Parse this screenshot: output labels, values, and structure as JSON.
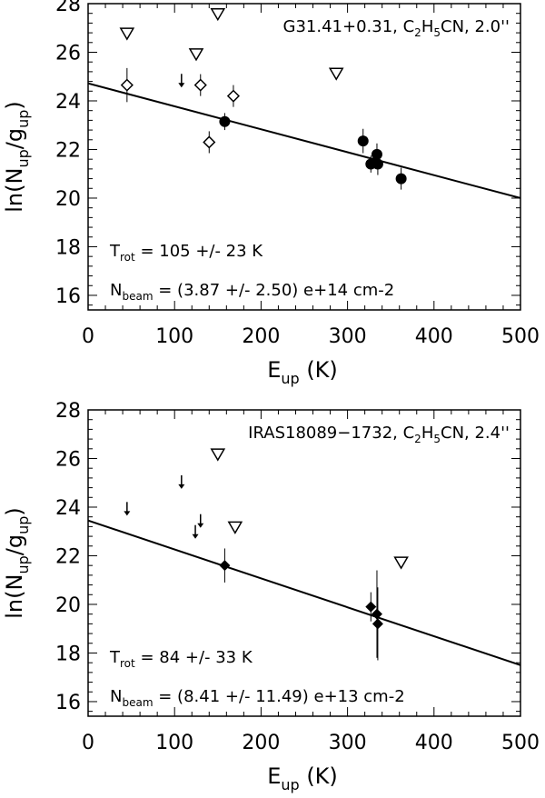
{
  "chart_data": [
    {
      "type": "scatter",
      "annotation": {
        "prefix": "G31.41+0.31, C",
        "sub1": "2",
        "mid": "H",
        "sub2": "5",
        "suffix": "CN, 2.0''"
      },
      "xlabel": {
        "main": "E",
        "sub": "up",
        "unit": " (K)"
      },
      "ylabel": {
        "pre": "ln(N",
        "sub1": "up",
        "mid": "/g",
        "sub2": "up",
        "post": ")"
      },
      "xlim": [
        0,
        500
      ],
      "ylim": [
        15.4,
        28
      ],
      "xticks": [
        0,
        100,
        200,
        300,
        400,
        500
      ],
      "yticks": [
        16,
        18,
        20,
        22,
        24,
        26,
        28
      ],
      "trot": {
        "label": "T",
        "sub": "rot",
        "text": " = 105 +/- 23 K"
      },
      "nbeam": {
        "label": "N",
        "sub": "beam",
        "text": " = (3.87 +/- 2.50) e+14 cm-2"
      },
      "fit": {
        "x": [
          0,
          500
        ],
        "y": [
          24.72,
          20.0
        ]
      },
      "filled_circles": [
        {
          "x": 158,
          "y": 23.15,
          "err": 0.35
        },
        {
          "x": 318,
          "y": 22.35,
          "err": 0.5
        },
        {
          "x": 327,
          "y": 21.4,
          "err": 0.35
        },
        {
          "x": 334,
          "y": 21.8,
          "err": 0.45
        },
        {
          "x": 335,
          "y": 21.4,
          "err": 0.45
        },
        {
          "x": 362,
          "y": 20.8,
          "err": 0.45
        }
      ],
      "open_diamonds": [
        {
          "x": 45,
          "y": 24.65,
          "err": 0.7
        },
        {
          "x": 130,
          "y": 24.65,
          "err": 0.45
        },
        {
          "x": 140,
          "y": 22.3,
          "err": 0.45
        },
        {
          "x": 168,
          "y": 24.2,
          "err": 0.45
        }
      ],
      "open_triangles": [
        {
          "x": 45,
          "y": 26.8
        },
        {
          "x": 125,
          "y": 25.95
        },
        {
          "x": 150,
          "y": 27.6
        },
        {
          "x": 287,
          "y": 25.15
        }
      ],
      "upper_limits": [
        {
          "x": 108,
          "y": 24.85
        }
      ]
    },
    {
      "type": "scatter",
      "annotation": {
        "prefix": "IRAS18089−1732, C",
        "sub1": "2",
        "mid": "H",
        "sub2": "5",
        "suffix": "CN, 2.4''"
      },
      "xlabel": {
        "main": "E",
        "sub": "up",
        "unit": " (K)"
      },
      "ylabel": {
        "pre": "ln(N",
        "sub1": "up",
        "mid": "/g",
        "sub2": "up",
        "post": ")"
      },
      "xlim": [
        0,
        500
      ],
      "ylim": [
        15.4,
        28
      ],
      "xticks": [
        0,
        100,
        200,
        300,
        400,
        500
      ],
      "yticks": [
        16,
        18,
        20,
        22,
        24,
        26,
        28
      ],
      "trot": {
        "label": "T",
        "sub": "rot",
        "text": " =  84 +/- 33 K"
      },
      "nbeam": {
        "label": "N",
        "sub": "beam",
        "text": " = (8.41 +/- 11.49) e+13 cm-2"
      },
      "fit": {
        "x": [
          0,
          500
        ],
        "y": [
          23.45,
          17.5
        ]
      },
      "filled_diamonds": [
        {
          "x": 158,
          "y": 21.6,
          "err": 0.7
        },
        {
          "x": 327,
          "y": 19.9,
          "err": 0.6
        },
        {
          "x": 334,
          "y": 19.6,
          "err": 1.8
        },
        {
          "x": 335,
          "y": 19.2,
          "err": 1.5
        }
      ],
      "open_triangles": [
        {
          "x": 150,
          "y": 26.2
        },
        {
          "x": 170,
          "y": 23.2
        },
        {
          "x": 362,
          "y": 21.75
        }
      ],
      "upper_limits": [
        {
          "x": 45,
          "y": 23.95
        },
        {
          "x": 108,
          "y": 25.05
        },
        {
          "x": 124,
          "y": 23.0
        },
        {
          "x": 130,
          "y": 23.45
        }
      ]
    }
  ]
}
